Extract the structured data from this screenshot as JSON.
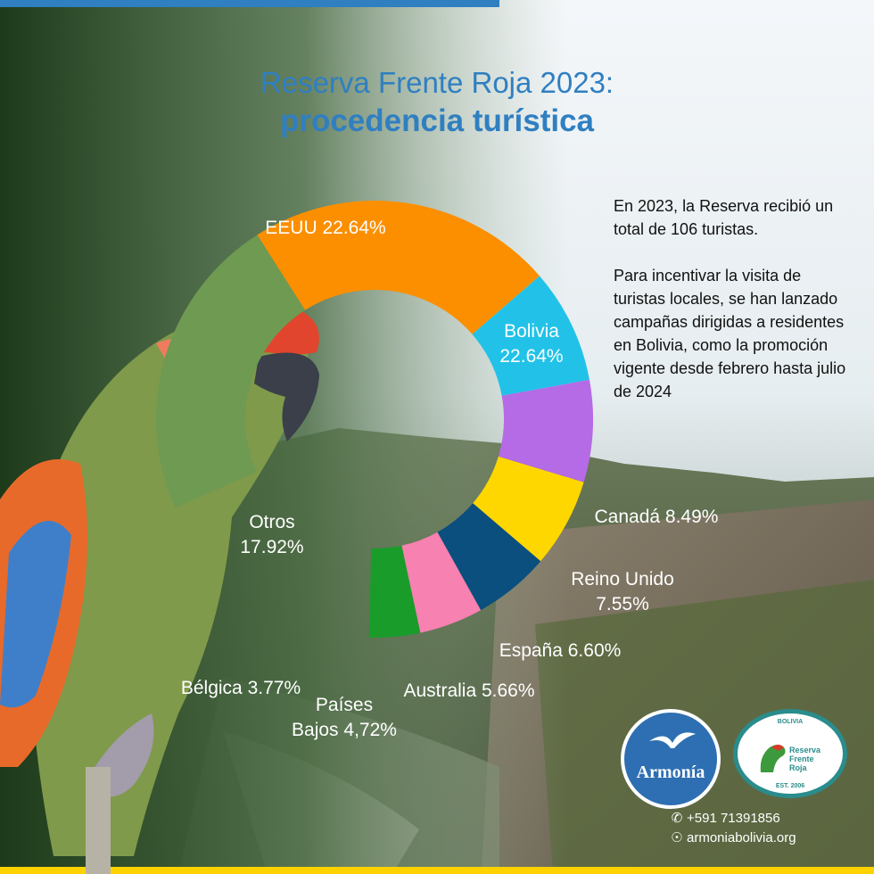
{
  "header": {
    "title_line1": "Reserva Frente Roja 2023:",
    "title_line2": "procedencia turística"
  },
  "side_text": {
    "paragraph1": "En 2023, la Reserva recibió un total de 106 turistas.",
    "paragraph2": "Para incentivar la visita de turistas locales, se han lanzado campañas dirigidas a residentes en Bolivia, como la promoción vigente desde febrero hasta julio de 2024"
  },
  "chart_data": {
    "type": "pie",
    "style": "donut",
    "title": "Reserva Frente Roja 2023: procedencia turística",
    "categories": [
      "EEUU",
      "Bolivia",
      "Canadá",
      "Reino Unido",
      "España",
      "Australia",
      "Países Bajos",
      "Bélgica",
      "Otros"
    ],
    "values": [
      22.64,
      22.64,
      8.49,
      7.55,
      6.6,
      5.66,
      4.72,
      3.77,
      17.92
    ],
    "colors": [
      "#6e9a52",
      "#fb8f00",
      "#22c2e8",
      "#b56ae6",
      "#ffd700",
      "#0a4f7e",
      "#f781b0",
      "#1a9c2a",
      "transparent"
    ],
    "labels": [
      {
        "line1": "EEUU 22.64%",
        "line2": ""
      },
      {
        "line1": "Bolivia",
        "line2": "22.64%"
      },
      {
        "line1": "Canadá 8.49%",
        "line2": ""
      },
      {
        "line1": "Reino Unido",
        "line2": "7.55%"
      },
      {
        "line1": "España 6.60%",
        "line2": ""
      },
      {
        "line1": "Australia 5.66%",
        "line2": ""
      },
      {
        "line1": "Países",
        "line2": "Bajos 4,72%"
      },
      {
        "line1": "Bélgica 3.77%",
        "line2": ""
      },
      {
        "line1": "Otros",
        "line2": "17.92%"
      }
    ]
  },
  "logos": {
    "armonia_name": "Armonía",
    "reserva_top": "BOLIVIA",
    "reserva_name_line1": "Reserva",
    "reserva_name_line2": "Frente",
    "reserva_name_line3": "Roja",
    "reserva_est": "EST. 2006"
  },
  "contact": {
    "phone_icon": "whatsapp-icon",
    "phone": "+591 71391856",
    "web_icon": "globe-icon",
    "website": "armoniabolivia.org"
  },
  "colors": {
    "title": "#2f7fc1",
    "top_bar": "#2f7fc1",
    "bottom_bar": "#ffd200"
  }
}
